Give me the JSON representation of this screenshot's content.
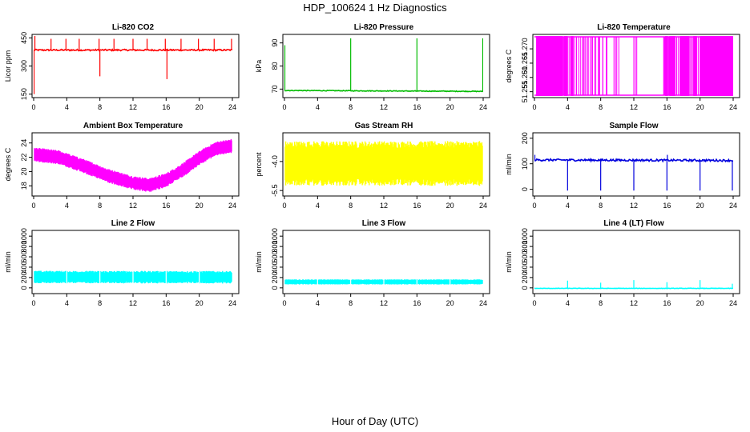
{
  "figure": {
    "title": "HDP_100624  1 Hz Diagnostics",
    "xlabel": "Hour of Day (UTC)"
  },
  "chart_data": [
    {
      "id": "co2",
      "type": "line",
      "title": "Li-820 CO2",
      "ylabel": "Licor ppm",
      "color": "#ff0000",
      "fill_band": false,
      "ylim": [
        140,
        460
      ],
      "yticks": [
        150,
        300,
        450
      ],
      "ytick_labels": [
        "150",
        "300",
        "450"
      ],
      "xlim": [
        0,
        24
      ],
      "xticks": [
        0,
        4,
        8,
        12,
        16,
        20,
        24
      ],
      "xtick_labels": [
        "0",
        "4",
        "8",
        "12",
        "16",
        "20",
        "24"
      ],
      "baseline": [
        [
          0,
          385
        ],
        [
          24,
          385
        ]
      ],
      "noise": 4,
      "spikes": [
        {
          "x": 0.05,
          "y": 150
        },
        {
          "x": 0.15,
          "y": 460
        },
        {
          "x": 2.1,
          "y": 445
        },
        {
          "x": 3.9,
          "y": 445
        },
        {
          "x": 5.5,
          "y": 445
        },
        {
          "x": 7.9,
          "y": 445
        },
        {
          "x": 8.0,
          "y": 245
        },
        {
          "x": 9.7,
          "y": 445
        },
        {
          "x": 12.0,
          "y": 445
        },
        {
          "x": 13.7,
          "y": 445
        },
        {
          "x": 15.9,
          "y": 445
        },
        {
          "x": 16.1,
          "y": 230
        },
        {
          "x": 17.8,
          "y": 445
        },
        {
          "x": 19.9,
          "y": 445
        },
        {
          "x": 21.8,
          "y": 445
        },
        {
          "x": 23.9,
          "y": 445
        }
      ]
    },
    {
      "id": "pressure",
      "type": "line",
      "title": "Li-820 Pressure",
      "ylabel": "kPa",
      "color": "#00bb00",
      "fill_band": false,
      "ylim": [
        67,
        93
      ],
      "yticks": [
        70,
        80,
        90
      ],
      "ytick_labels": [
        "70",
        "80",
        "90"
      ],
      "xlim": [
        0,
        24
      ],
      "xticks": [
        0,
        4,
        8,
        12,
        16,
        20,
        24
      ],
      "xtick_labels": [
        "0",
        "4",
        "8",
        "12",
        "16",
        "20",
        "24"
      ],
      "baseline": [
        [
          0,
          69.4
        ],
        [
          24,
          69.0
        ]
      ],
      "noise": 0.15,
      "spikes": [
        {
          "x": 0.05,
          "y": 89
        },
        {
          "x": 8.0,
          "y": 92
        },
        {
          "x": 16.0,
          "y": 92
        },
        {
          "x": 23.95,
          "y": 92
        }
      ]
    },
    {
      "id": "temp",
      "type": "band",
      "title": "Li-820 Temperature",
      "ylabel": "degrees C",
      "color": "#ff00ff",
      "fill_band": true,
      "ylim": [
        51.2535,
        51.2745
      ],
      "yticks": [
        51.255,
        51.26,
        51.265,
        51.27
      ],
      "ytick_labels": [
        "51.255",
        "51.260",
        "51.265",
        "51.270"
      ],
      "xlim": [
        0,
        24
      ],
      "xticks": [
        0,
        4,
        8,
        12,
        16,
        20,
        24
      ],
      "xtick_labels": [
        "0",
        "4",
        "8",
        "12",
        "16",
        "20",
        "24"
      ],
      "level_low": 51.2535,
      "level_high": 51.2745,
      "solid_segments": [
        [
          0.2,
          3.4
        ],
        [
          3.6,
          4.0
        ],
        [
          4.4,
          4.7
        ],
        [
          15.8,
          16.1
        ],
        [
          16.3,
          17.0
        ],
        [
          17.6,
          18.7
        ],
        [
          19.2,
          19.6
        ],
        [
          20.0,
          24.0
        ]
      ],
      "toggle_segments": [
        [
          3.4,
          3.6
        ],
        [
          4.0,
          4.4
        ],
        [
          4.7,
          6.0
        ],
        [
          6.0,
          8.9
        ],
        [
          9.6,
          10.2
        ],
        [
          12.0,
          12.4
        ],
        [
          15.6,
          15.8
        ],
        [
          16.1,
          16.3
        ],
        [
          17.0,
          17.6
        ],
        [
          18.7,
          19.2
        ],
        [
          19.6,
          20.0
        ]
      ]
    },
    {
      "id": "boxtemp",
      "type": "band",
      "title": "Ambient Box Temperature",
      "ylabel": "degrees C",
      "color": "#ff00ff",
      "fill_band": true,
      "ylim": [
        16.8,
        25.2
      ],
      "yticks": [
        18,
        20,
        22,
        24
      ],
      "ytick_labels": [
        "18",
        "20",
        "22",
        "24"
      ],
      "xlim": [
        0,
        24
      ],
      "xticks": [
        0,
        4,
        8,
        12,
        16,
        20,
        24
      ],
      "xtick_labels": [
        "0",
        "4",
        "8",
        "12",
        "16",
        "20",
        "24"
      ],
      "center": [
        [
          0,
          22.4
        ],
        [
          3,
          22.0
        ],
        [
          6,
          20.8
        ],
        [
          9,
          19.4
        ],
        [
          12,
          18.4
        ],
        [
          14,
          18.1
        ],
        [
          16,
          18.8
        ],
        [
          18,
          20.2
        ],
        [
          20,
          21.9
        ],
        [
          22,
          23.2
        ],
        [
          24,
          23.6
        ]
      ],
      "half_width": 0.9
    },
    {
      "id": "rh",
      "type": "band",
      "title": "Gas Stream RH",
      "ylabel": "percent",
      "color": "#ffff00",
      "fill_band": true,
      "ylim": [
        -5.7,
        -2.6
      ],
      "yticks": [
        -5.5,
        -4.0
      ],
      "ytick_labels": [
        "-5.5",
        "-4.0"
      ],
      "xlim": [
        0,
        24
      ],
      "xticks": [
        0,
        4,
        8,
        12,
        16,
        20,
        24
      ],
      "xtick_labels": [
        "0",
        "4",
        "8",
        "12",
        "16",
        "20",
        "24"
      ],
      "center": [
        [
          0,
          -4.1
        ],
        [
          24,
          -4.1
        ]
      ],
      "half_width": 1.05
    },
    {
      "id": "sampleflow",
      "type": "line",
      "title": "Sample Flow",
      "ylabel": "ml/min",
      "color": "#0000dd",
      "fill_band": false,
      "ylim": [
        -20,
        215
      ],
      "yticks": [
        0,
        100,
        200
      ],
      "ytick_labels": [
        "0",
        "100",
        "200"
      ],
      "xlim": [
        0,
        24
      ],
      "xticks": [
        0,
        4,
        8,
        12,
        16,
        20,
        24
      ],
      "xtick_labels": [
        "0",
        "4",
        "8",
        "12",
        "16",
        "20",
        "24"
      ],
      "baseline": [
        [
          0,
          115
        ],
        [
          24,
          113
        ]
      ],
      "noise": 4,
      "spikes": [
        {
          "x": 0.05,
          "y": 135
        },
        {
          "x": 4.0,
          "y": -5
        },
        {
          "x": 8.0,
          "y": -5
        },
        {
          "x": 12.0,
          "y": -5
        },
        {
          "x": 16.0,
          "y": -5
        },
        {
          "x": 16.05,
          "y": 135
        },
        {
          "x": 20.0,
          "y": -5
        },
        {
          "x": 23.9,
          "y": -5
        }
      ]
    },
    {
      "id": "line2",
      "type": "band",
      "title": "Line 2 Flow",
      "ylabel": "ml/min",
      "color": "#00ffff",
      "fill_band": true,
      "ylim": [
        -80,
        1080
      ],
      "yticks": [
        0,
        200,
        400,
        600,
        800,
        1000
      ],
      "ytick_labels": [
        "0",
        "200",
        "400",
        "600",
        "800",
        "1000"
      ],
      "xlim": [
        0,
        24
      ],
      "xticks": [
        0,
        4,
        8,
        12,
        16,
        20,
        24
      ],
      "xtick_labels": [
        "0",
        "4",
        "8",
        "12",
        "16",
        "20",
        "24"
      ],
      "center": [
        [
          0,
          210
        ],
        [
          24,
          205
        ]
      ],
      "half_width": 110,
      "gaps": [
        4.0,
        8.0,
        12.0,
        16.0,
        20.0
      ]
    },
    {
      "id": "line3",
      "type": "band",
      "title": "Line 3 Flow",
      "ylabel": "ml/min",
      "color": "#00ffff",
      "fill_band": true,
      "ylim": [
        -80,
        1080
      ],
      "yticks": [
        0,
        200,
        400,
        600,
        800,
        1000
      ],
      "ytick_labels": [
        "0",
        "200",
        "400",
        "600",
        "800",
        "1000"
      ],
      "xlim": [
        0,
        24
      ],
      "xticks": [
        0,
        4,
        8,
        12,
        16,
        20,
        24
      ],
      "xtick_labels": [
        "0",
        "4",
        "8",
        "12",
        "16",
        "20",
        "24"
      ],
      "center": [
        [
          0,
          115
        ],
        [
          24,
          115
        ]
      ],
      "half_width": 45,
      "gaps": [
        4.0,
        8.0,
        12.0,
        16.0,
        20.0
      ]
    },
    {
      "id": "line4",
      "type": "line",
      "title": "Line 4 (LT) Flow",
      "ylabel": "ml/min",
      "color": "#00ffff",
      "fill_band": false,
      "ylim": [
        -80,
        1080
      ],
      "yticks": [
        0,
        200,
        400,
        600,
        800,
        1000
      ],
      "ytick_labels": [
        "0",
        "200",
        "400",
        "600",
        "800",
        "1000"
      ],
      "xlim": [
        0,
        24
      ],
      "xticks": [
        0,
        4,
        8,
        12,
        16,
        20,
        24
      ],
      "xtick_labels": [
        "0",
        "4",
        "8",
        "12",
        "16",
        "20",
        "24"
      ],
      "baseline": [
        [
          0,
          -10
        ],
        [
          24,
          -10
        ]
      ],
      "noise": 4,
      "spikes": [
        {
          "x": 4.0,
          "y": 140
        },
        {
          "x": 8.0,
          "y": 100
        },
        {
          "x": 12.0,
          "y": 150
        },
        {
          "x": 16.0,
          "y": 110
        },
        {
          "x": 20.0,
          "y": 150
        },
        {
          "x": 23.9,
          "y": 80
        }
      ]
    }
  ]
}
